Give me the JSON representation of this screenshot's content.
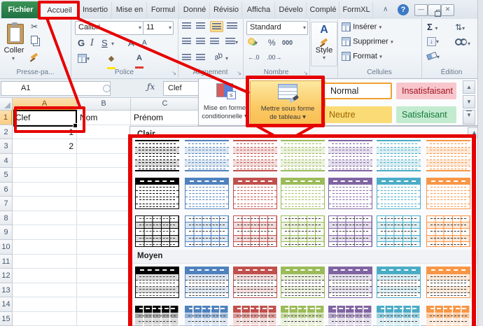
{
  "tab_bar": {
    "file_tab": "Fichier",
    "tabs": [
      "Accueil",
      "Insertio",
      "Mise en",
      "Formul",
      "Donné",
      "Révisio",
      "Afficha",
      "Dévelo",
      "Complé",
      "FormXL"
    ],
    "active_tab": "Accueil",
    "collapse_icon": "∧",
    "help_icon": "?"
  },
  "ribbon": {
    "clipboard": {
      "label": "Presse-pa...",
      "paste": "Coller"
    },
    "font": {
      "label": "Police",
      "font_name": "Calibri",
      "font_size": "11",
      "bold": "G",
      "italic": "I",
      "underline": "S",
      "grow": "A",
      "shrink": "A"
    },
    "alignment": {
      "label": "Alignement",
      "orientation": "ab"
    },
    "number": {
      "label": "Nombre",
      "format": "Standard",
      "percent": "%",
      "thousands": "000",
      "dec_left": "←.0",
      "dec_right": ".00→"
    },
    "style_button": {
      "label": "Style",
      "glyph": "A"
    },
    "cells": {
      "label": "Cellules",
      "items": [
        "Insérer",
        "Supprimer",
        "Format"
      ]
    },
    "editing": {
      "label": "Édition",
      "sigma": "Σ",
      "sort": "⇅"
    }
  },
  "formula_bar": {
    "name_box": "A1",
    "fx": "ƒx",
    "value": "Clef"
  },
  "sheet": {
    "columns": [
      {
        "name": "A",
        "selected": true
      },
      {
        "name": "B",
        "selected": false
      },
      {
        "name": "C",
        "selected": false
      }
    ],
    "row_count": 15,
    "selected_row": 1,
    "selection": "A1",
    "cells": {
      "A1": "Clef",
      "B1": "Nom",
      "C1": "Prénom",
      "A2": "1",
      "A3": "2"
    }
  },
  "style_popup": {
    "conditional_line1": "Mise en forme",
    "conditional_line2": "conditionnelle ▾",
    "format_table_line1": "Mettre sous forme",
    "format_table_line2": "de tableau ▾",
    "cell_styles": [
      {
        "label": "Normal",
        "bg": "#FFFFFF",
        "text": "#1E1E1E",
        "selected": true
      },
      {
        "label": "Insatisfaisant",
        "bg": "#F8C7CE",
        "text": "#A0131F",
        "selected": false
      },
      {
        "label": "Neutre",
        "bg": "#FBDB75",
        "text": "#9C6500",
        "selected": false
      },
      {
        "label": "Satisfaisant",
        "bg": "#C3EBCF",
        "text": "#147A3D",
        "selected": false
      }
    ]
  },
  "table_gallery": {
    "sections": [
      {
        "label": "Clair",
        "variants": [
          "light-lines",
          "light-header",
          "light-grid"
        ]
      },
      {
        "label": "Moyen",
        "variants": [
          "medium-header",
          "medium-cells"
        ]
      }
    ],
    "palette": [
      {
        "name": "black",
        "accent": "#000000",
        "band": "#D9D9D9",
        "medium": "#A6A6A6"
      },
      {
        "name": "blue",
        "accent": "#4F81BD",
        "band": "#DCE6F1",
        "medium": "#95B3D7"
      },
      {
        "name": "red",
        "accent": "#C0504D",
        "band": "#F2DCDB",
        "medium": "#D99694"
      },
      {
        "name": "green",
        "accent": "#9BBB59",
        "band": "#EBF1DE",
        "medium": "#C3D69B"
      },
      {
        "name": "purple",
        "accent": "#8064A2",
        "band": "#E4DFEC",
        "medium": "#B3A2C7"
      },
      {
        "name": "cyan",
        "accent": "#4BACC6",
        "band": "#DAEEF3",
        "medium": "#93CDDD"
      },
      {
        "name": "orange",
        "accent": "#F79646",
        "band": "#FDE9D9",
        "medium": "#FAC090"
      }
    ]
  },
  "colors": {
    "annotation": "#E60000",
    "highlight_button": "#FBC964"
  }
}
